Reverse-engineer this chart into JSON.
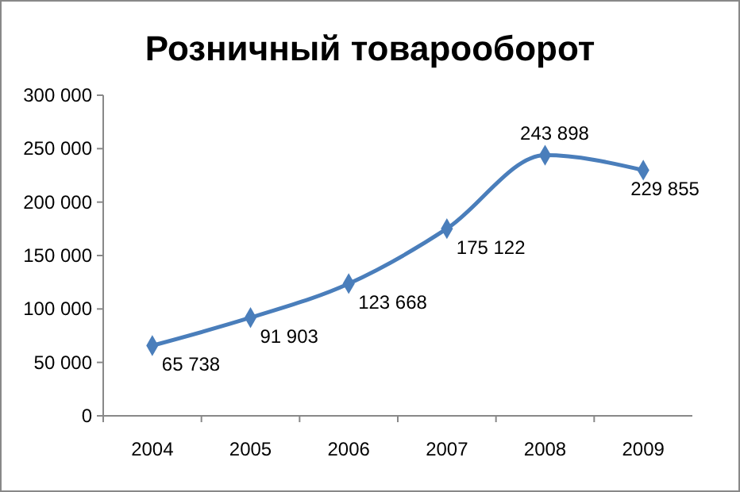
{
  "chart_data": {
    "type": "line",
    "title": "Розничный товарооборот",
    "categories": [
      "2004",
      "2005",
      "2006",
      "2007",
      "2008",
      "2009"
    ],
    "series": [
      {
        "color": "#4a7ebb",
        "values": [
          65738,
          91903,
          123668,
          175122,
          243898,
          229855
        ]
      }
    ],
    "value_labels": [
      "65 738",
      "91 903",
      "123 668",
      "175 122",
      "243 898",
      "229 855"
    ],
    "ylim": [
      0,
      300000
    ],
    "yticks": [
      {
        "value": 0,
        "label": "0"
      },
      {
        "value": 50000,
        "label": "50 000"
      },
      {
        "value": 100000,
        "label": "100 000"
      },
      {
        "value": 150000,
        "label": "150 000"
      },
      {
        "value": 200000,
        "label": "200 000"
      },
      {
        "value": 250000,
        "label": "250 000"
      },
      {
        "value": 300000,
        "label": "300 000"
      }
    ],
    "marker": "diamond",
    "line_style": "solid"
  }
}
